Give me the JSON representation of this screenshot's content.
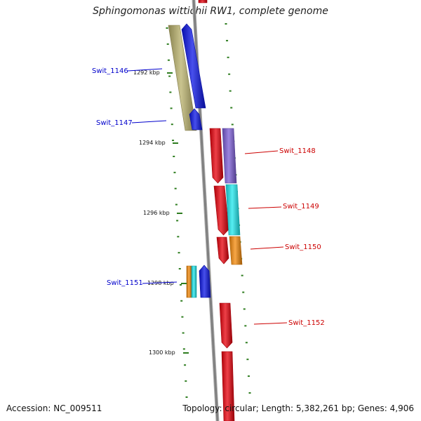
{
  "title": "Sphingomonas wittichii RW1, complete genome",
  "footer": {
    "accession": "Accession: NC_009511",
    "summary": "Topology: circular; Length: 5,382,261 bp; Genes: 4,906"
  },
  "colors": {
    "backbone": "#808080",
    "tick": "#2e7d1f",
    "label_blue": "#0000cc",
    "label_red": "#cc0000",
    "red": "#e8000b",
    "blue": "#0a14e6",
    "purple": "#7b5cd6",
    "cyan": "#1ee8ee",
    "orange": "#f58a0a",
    "olive": "#b8b06a"
  },
  "ruler": [
    {
      "label": "1292 kbp"
    },
    {
      "label": "1294 kbp"
    },
    {
      "label": "1296 kbp"
    },
    {
      "label": "1298 kbp"
    },
    {
      "label": "1300 kbp"
    }
  ],
  "gene_labels": [
    {
      "name": "Swit_1146",
      "strand": "minus"
    },
    {
      "name": "Swit_1147",
      "strand": "minus"
    },
    {
      "name": "Swit_1148",
      "strand": "plus"
    },
    {
      "name": "Swit_1149",
      "strand": "plus"
    },
    {
      "name": "Swit_1150",
      "strand": "plus"
    },
    {
      "name": "Swit_1151",
      "strand": "minus"
    },
    {
      "name": "Swit_1152",
      "strand": "plus"
    }
  ]
}
